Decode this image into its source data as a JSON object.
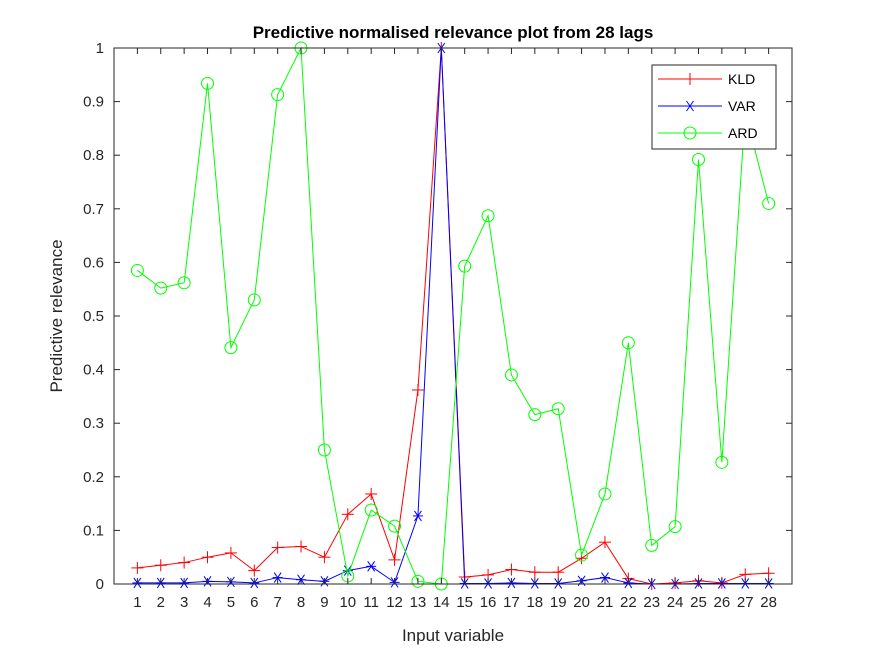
{
  "chart_data": {
    "type": "line",
    "title": "Predictive normalised relevance plot from 28 lags",
    "xlabel": "Input variable",
    "ylabel": "Predictive relevance",
    "x": [
      1,
      2,
      3,
      4,
      5,
      6,
      7,
      8,
      9,
      10,
      11,
      12,
      13,
      14,
      15,
      16,
      17,
      18,
      19,
      20,
      21,
      22,
      23,
      24,
      25,
      26,
      27,
      28
    ],
    "xlim": [
      0,
      29
    ],
    "ylim": [
      0,
      1
    ],
    "yticks": [
      0,
      0.1,
      0.2,
      0.3,
      0.4,
      0.5,
      0.6,
      0.7,
      0.8,
      0.9,
      1
    ],
    "ytick_labels": [
      "0",
      "0.1",
      "0.2",
      "0.3",
      "0.4",
      "0.5",
      "0.6",
      "0.7",
      "0.8",
      "0.9",
      "1"
    ],
    "xtick_labels": [
      "1",
      "2",
      "3",
      "4",
      "5",
      "6",
      "7",
      "8",
      "9",
      "10",
      "11",
      "12",
      "13",
      "14",
      "15",
      "16",
      "17",
      "18",
      "19",
      "20",
      "21",
      "22",
      "23",
      "24",
      "25",
      "26",
      "27",
      "28"
    ],
    "grid": false,
    "legend_position": "top-right",
    "series": [
      {
        "name": "KLD",
        "color": "#ff0000",
        "marker": "plus",
        "values": [
          0.03,
          0.035,
          0.04,
          0.05,
          0.058,
          0.025,
          0.068,
          0.07,
          0.05,
          0.13,
          0.168,
          0.045,
          0.362,
          1.0,
          0.013,
          0.017,
          0.027,
          0.022,
          0.022,
          0.048,
          0.078,
          0.01,
          0.0,
          0.002,
          0.006,
          0.002,
          0.018,
          0.02
        ]
      },
      {
        "name": "VAR",
        "color": "#0000ff",
        "marker": "asterisk",
        "values": [
          0.002,
          0.002,
          0.002,
          0.005,
          0.004,
          0.002,
          0.012,
          0.008,
          0.005,
          0.025,
          0.033,
          0.003,
          0.127,
          1.0,
          0.001,
          0.001,
          0.002,
          0.001,
          0.001,
          0.006,
          0.012,
          0.002,
          0.0,
          0.0,
          0.001,
          0.001,
          0.001,
          0.001
        ]
      },
      {
        "name": "ARD",
        "color": "#00ff00",
        "marker": "circle",
        "values": [
          0.585,
          0.552,
          0.562,
          0.934,
          0.441,
          0.53,
          0.913,
          1.0,
          0.25,
          0.015,
          0.138,
          0.108,
          0.005,
          0.0,
          0.593,
          0.687,
          0.39,
          0.316,
          0.327,
          0.054,
          0.168,
          0.45,
          0.072,
          0.107,
          0.792,
          0.227,
          0.88,
          0.71
        ]
      }
    ]
  }
}
